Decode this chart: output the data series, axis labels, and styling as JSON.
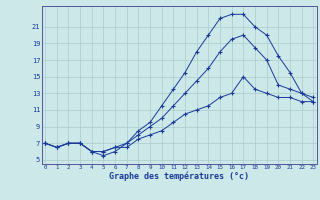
{
  "xlabel": "Graphe des températures (°c)",
  "background_color": "#cce8e8",
  "line_color": "#1a3a9a",
  "grid_color": "#aacccc",
  "x_hours": [
    0,
    1,
    2,
    3,
    4,
    5,
    6,
    7,
    8,
    9,
    10,
    11,
    12,
    13,
    14,
    15,
    16,
    17,
    18,
    19,
    20,
    21,
    22,
    23
  ],
  "line1": [
    7.0,
    6.5,
    7.0,
    7.0,
    6.0,
    6.0,
    6.5,
    6.5,
    7.5,
    8.0,
    8.5,
    9.5,
    10.5,
    11.0,
    11.5,
    12.5,
    13.0,
    15.0,
    13.5,
    13.0,
    12.5,
    12.5,
    12.0,
    12.0
  ],
  "line2": [
    7.0,
    6.5,
    7.0,
    7.0,
    6.0,
    6.0,
    6.5,
    7.0,
    8.0,
    9.0,
    10.0,
    11.5,
    13.0,
    14.5,
    16.0,
    18.0,
    19.5,
    20.0,
    18.5,
    17.0,
    14.0,
    13.5,
    13.0,
    12.5
  ],
  "line3": [
    7.0,
    6.5,
    7.0,
    7.0,
    6.0,
    5.5,
    6.0,
    7.0,
    8.5,
    9.5,
    11.5,
    13.5,
    15.5,
    18.0,
    20.0,
    22.0,
    22.5,
    22.5,
    21.0,
    20.0,
    17.5,
    15.5,
    13.0,
    12.0
  ],
  "ylim": [
    4.5,
    23.5
  ],
  "xlim": [
    -0.3,
    23.3
  ],
  "yticks": [
    5,
    7,
    9,
    11,
    13,
    15,
    17,
    19,
    21
  ],
  "xticks": [
    0,
    1,
    2,
    3,
    4,
    5,
    6,
    7,
    8,
    9,
    10,
    11,
    12,
    13,
    14,
    15,
    16,
    17,
    18,
    19,
    20,
    21,
    22,
    23
  ]
}
